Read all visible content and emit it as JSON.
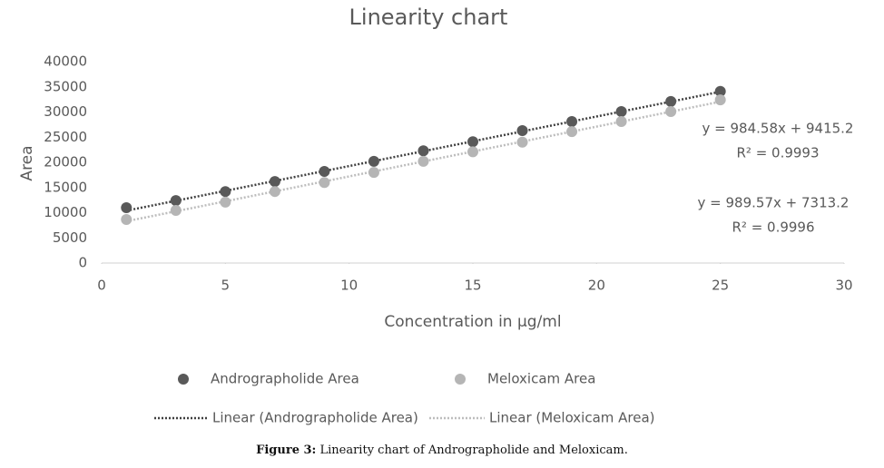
{
  "chart_data": {
    "type": "scatter",
    "title": "Linearity chart",
    "x_label": "Concentration in μg/ml",
    "y_label": "Area",
    "xlim": [
      0,
      30
    ],
    "xticks": [
      0,
      5,
      10,
      15,
      20,
      25,
      30
    ],
    "ylim": [
      0,
      40000
    ],
    "yticks": [
      0,
      5000,
      10000,
      15000,
      20000,
      25000,
      30000,
      35000,
      40000
    ],
    "grid": false,
    "legend": "bottom",
    "series": [
      {
        "name": "Andrographolide Area",
        "color": "#595959",
        "x": [
          1,
          3,
          5,
          7,
          9,
          11,
          13,
          15,
          17,
          19,
          21,
          23,
          25
        ],
        "values": [
          11000,
          12400,
          14200,
          16200,
          18200,
          20200,
          22300,
          24100,
          26300,
          28100,
          30100,
          32100,
          34100
        ]
      },
      {
        "name": "Meloxicam Area",
        "color": "#b5b5b5",
        "x": [
          1,
          3,
          5,
          7,
          9,
          11,
          13,
          15,
          17,
          19,
          21,
          23,
          25
        ],
        "values": [
          8650,
          10450,
          12100,
          14200,
          16000,
          18000,
          20200,
          22100,
          24000,
          26100,
          28100,
          30100,
          32400
        ]
      }
    ],
    "trendlines": [
      {
        "name": "Linear (Andrographolide Area)",
        "color": "#404040",
        "x": [
          1,
          25
        ],
        "values": [
          10400,
          34030
        ]
      },
      {
        "name": "Linear (Meloxicam Area)",
        "color": "#bdbdbd",
        "x": [
          1,
          25
        ],
        "values": [
          8300,
          32050
        ]
      }
    ],
    "annotations": [
      "y = 984.58x + 9415.2",
      "R² = 0.9993",
      "y = 989.57x + 7313.2",
      "R² = 0.9996"
    ]
  },
  "caption": {
    "label": "Figure 3:",
    "text": "Linearity chart of Andrographolide and Meloxicam."
  }
}
